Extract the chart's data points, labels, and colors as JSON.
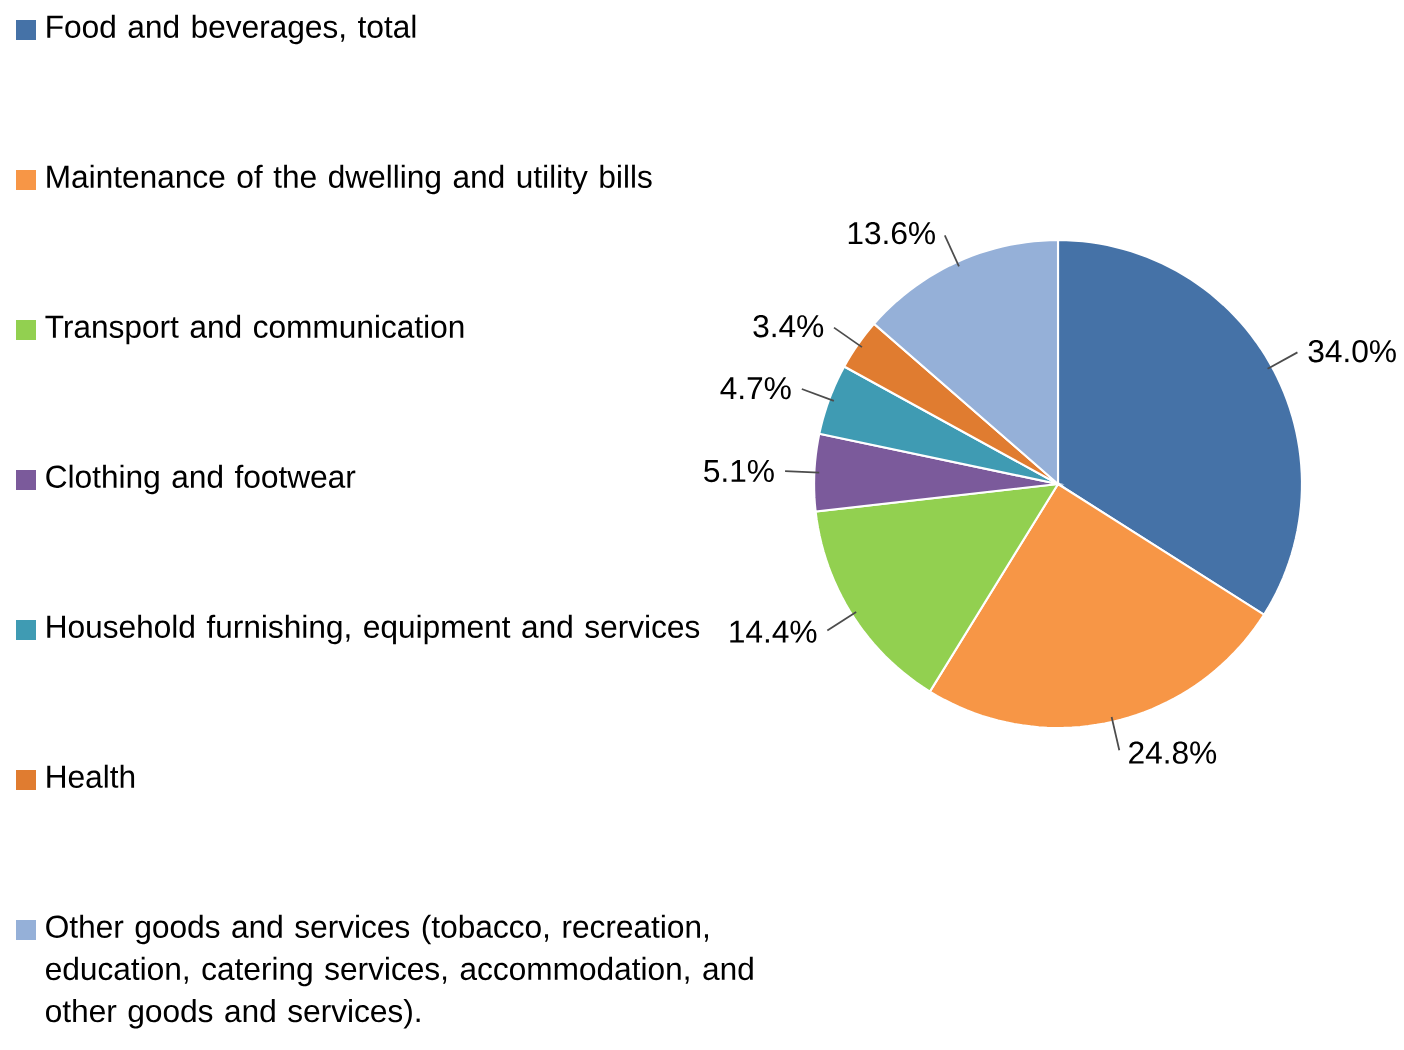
{
  "chart_data": {
    "type": "pie",
    "categories": [
      "Food and beverages, total",
      "Maintenance of the dwelling and utility bills",
      "Transport and communication",
      "Clothing and footwear",
      "Household furnishing, equipment and services",
      "Health",
      "Other goods and services (tobacco, recreation, education,  catering services, accommodation, and other goods and services)."
    ],
    "values": [
      34.0,
      24.8,
      14.4,
      5.1,
      4.7,
      3.4,
      13.6
    ],
    "value_labels": [
      "34.0%",
      "24.8%",
      "14.4%",
      "5.1%",
      "4.7%",
      "3.4%",
      "13.6%"
    ],
    "colors": [
      "#4572a7",
      "#f79646",
      "#92d050",
      "#7b5a9b",
      "#3f9bb3",
      "#e07c30",
      "#95b0d8"
    ],
    "legend": "left"
  }
}
